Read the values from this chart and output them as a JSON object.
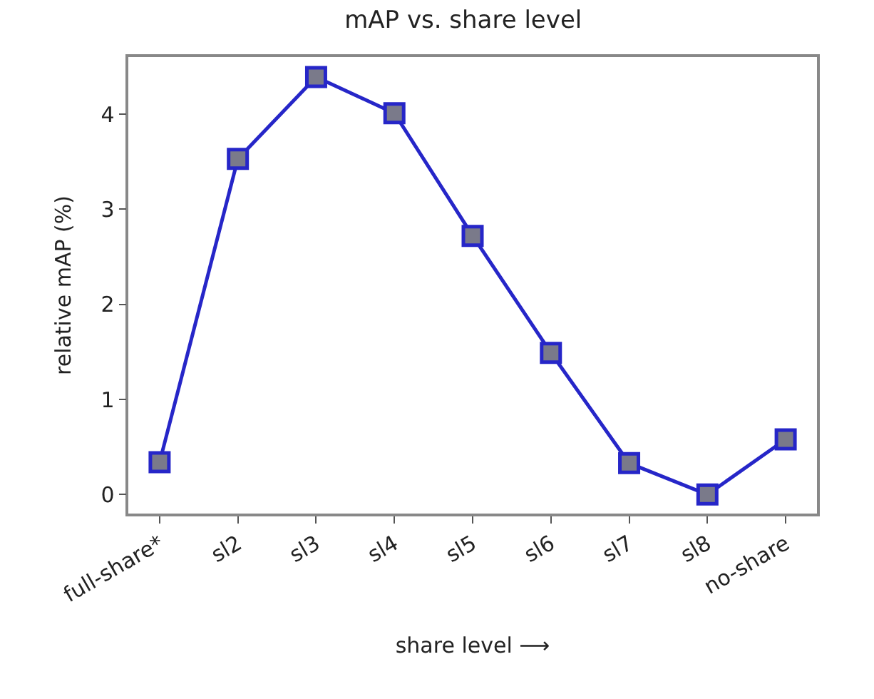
{
  "chart_data": {
    "type": "line",
    "title": "mAP vs. share level",
    "xlabel": "share level ⟶",
    "ylabel": "relative mAP (%)",
    "categories": [
      "full-share*",
      "sl2",
      "sl3",
      "sl4",
      "sl5",
      "sl6",
      "sl7",
      "sl8",
      "no-share"
    ],
    "series": [
      {
        "color": "#2626c8",
        "values": [
          0.34,
          3.53,
          4.39,
          4.01,
          2.72,
          1.49,
          0.33,
          0.0,
          0.58
        ]
      }
    ],
    "ylim": [
      -0.2,
      4.6
    ],
    "yticks": [
      0,
      1,
      2,
      3,
      4
    ],
    "marker": "square",
    "line_style": "solid",
    "grid": false
  }
}
